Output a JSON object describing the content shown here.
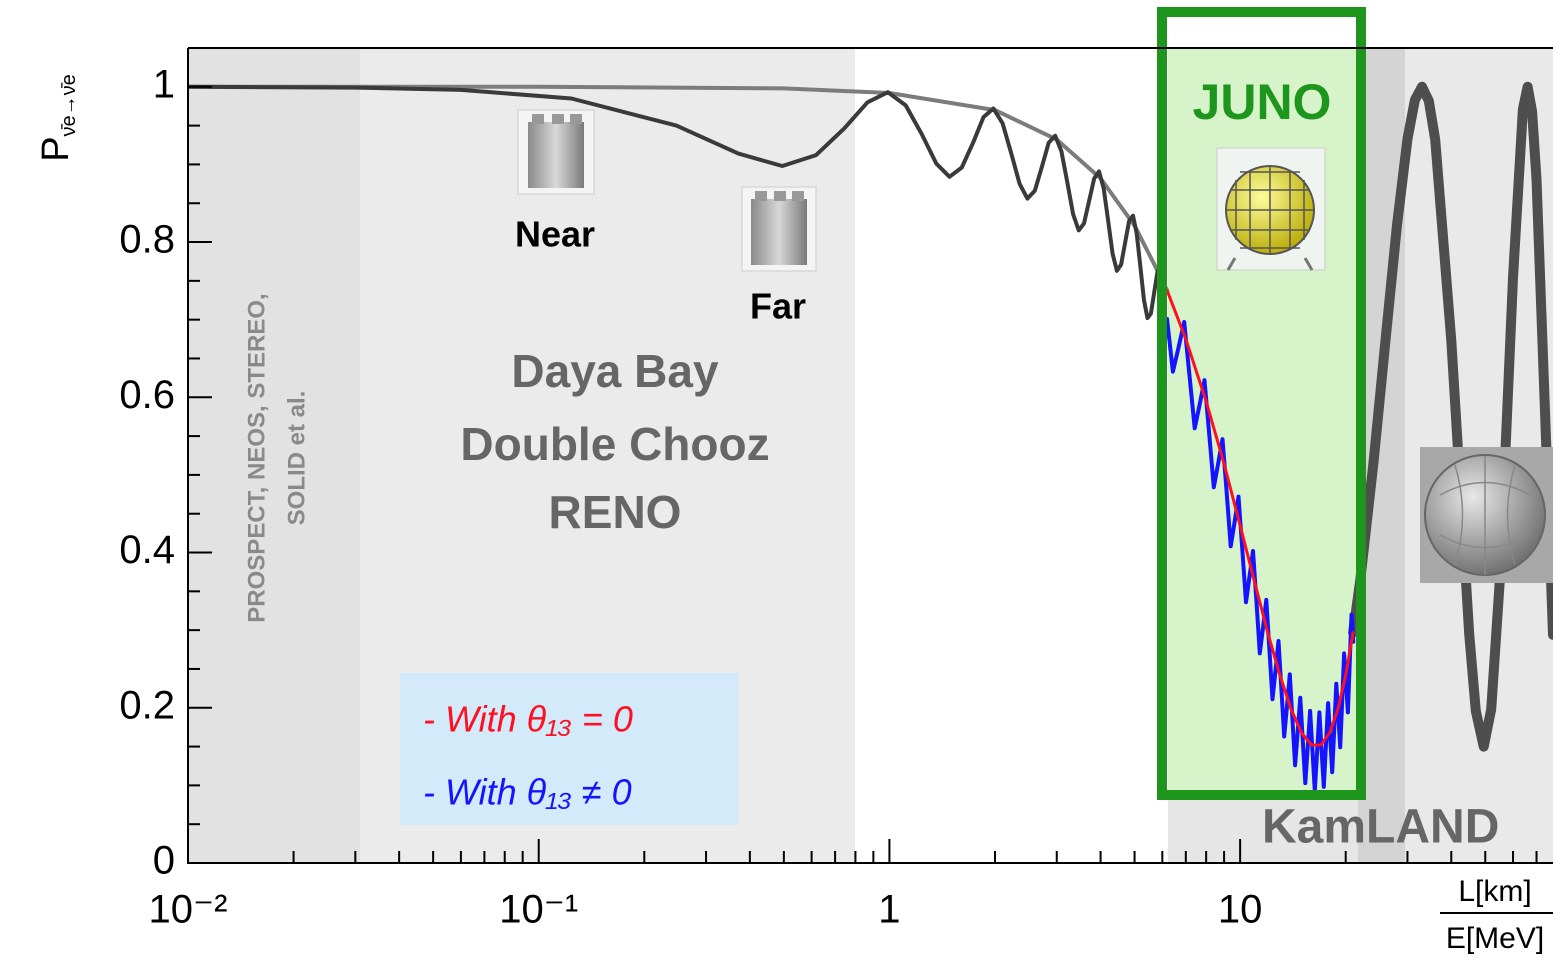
{
  "chart_data": {
    "type": "line",
    "xlog": true,
    "xlim": [
      0.01,
      78
    ],
    "ylim": [
      0,
      1.05
    ],
    "xticks": [
      {
        "value": 0.01,
        "label": "10⁻²"
      },
      {
        "value": 0.1,
        "label": "10⁻¹"
      },
      1,
      10
    ],
    "xminorticks": [
      0.02,
      0.03,
      0.04,
      0.05,
      0.06,
      0.07,
      0.08,
      0.09,
      0.2,
      0.3,
      0.4,
      0.5,
      0.6,
      0.7,
      0.8,
      0.9,
      2,
      3,
      4,
      5,
      6,
      7,
      8,
      9,
      20,
      30,
      40,
      50,
      60,
      70
    ],
    "yticks": [
      0,
      0.2,
      0.4,
      0.6,
      0.8,
      1
    ],
    "yminorticks": [
      0.05,
      0.1,
      0.15,
      0.25,
      0.3,
      0.35,
      0.45,
      0.5,
      0.55,
      0.65,
      0.7,
      0.75,
      0.85,
      0.9,
      0.95
    ],
    "y_label": "P",
    "y_label_sub": "ν̄e→ν̄e",
    "x_label_top": "L[km]",
    "x_label_bottom": "E[MeV]",
    "annotations": {
      "short_baseline": [
        "PROSPECT, NEOS, STEREO,",
        "SOLID et al."
      ],
      "medium_baseline": [
        "Daya Bay",
        "Double Chooz",
        "RENO"
      ],
      "near": "Near",
      "far": "Far",
      "juno": "JUNO",
      "kamland": "KamLAND"
    },
    "series": [
      {
        "color": "#7c7c7c",
        "line_width": 4,
        "x": [
          0.01,
          0.1,
          0.5,
          1,
          2,
          3,
          4,
          5,
          6,
          6.2
        ],
        "values": [
          1,
          1,
          0.998,
          0.992,
          0.97,
          0.932,
          0.882,
          0.821,
          0.751,
          0.737
        ]
      },
      {
        "color": "#3a3a3a",
        "line_width": 4,
        "x": [
          0.01,
          0.03,
          0.06,
          0.124,
          0.247,
          0.371,
          0.495,
          0.618,
          0.742,
          0.866,
          0.99,
          1.113,
          1.237,
          1.361,
          1.484,
          1.608,
          1.732,
          1.855,
          1.979,
          2.103,
          2.226,
          2.35,
          2.474,
          2.598,
          2.721,
          2.845,
          2.969,
          3.092,
          3.216,
          3.34,
          3.464,
          3.587,
          3.711,
          3.835,
          3.958,
          4.082,
          4.206,
          4.329,
          4.453,
          4.577,
          4.7,
          4.824,
          4.948,
          5.071,
          5.195,
          5.319,
          5.442,
          5.566,
          5.69,
          5.814,
          5.937,
          6.061
        ],
        "values": [
          1,
          0.999,
          0.996,
          0.985,
          0.95,
          0.914,
          0.898,
          0.912,
          0.946,
          0.98,
          0.993,
          0.976,
          0.939,
          0.901,
          0.884,
          0.896,
          0.928,
          0.961,
          0.972,
          0.953,
          0.914,
          0.875,
          0.856,
          0.866,
          0.897,
          0.928,
          0.937,
          0.917,
          0.877,
          0.836,
          0.815,
          0.824,
          0.853,
          0.882,
          0.891,
          0.869,
          0.827,
          0.785,
          0.763,
          0.771,
          0.799,
          0.827,
          0.834,
          0.811,
          0.768,
          0.725,
          0.702,
          0.708,
          0.735,
          0.762,
          0.768,
          0.745
        ]
      },
      {
        "name": "- With θ₁₃ ≠ 0",
        "color": "#1414ff",
        "line_width": 4,
        "x": [
          6.185,
          6.432,
          6.679,
          6.927,
          7.174,
          7.421,
          7.669,
          7.916,
          8.164,
          8.411,
          8.658,
          8.906,
          9.153,
          9.4,
          9.648,
          9.895,
          10.143,
          10.39,
          10.637,
          10.885,
          11.132,
          11.379,
          11.627,
          11.874,
          12.122,
          12.369,
          12.616,
          12.864,
          13.111,
          13.359,
          13.606,
          13.853,
          14.101,
          14.348,
          14.595,
          14.843,
          15.09,
          15.338,
          15.585,
          15.832,
          16.08,
          16.327,
          16.574,
          16.822,
          17.069,
          17.317,
          17.564,
          17.811,
          18.059,
          18.306,
          18.554,
          18.801,
          19.048,
          19.296,
          19.543,
          19.79,
          20.038,
          20.285,
          20.532,
          20.78,
          21.027
        ],
        "values": [
          0.701,
          0.633,
          0.665,
          0.697,
          0.628,
          0.56,
          0.591,
          0.622,
          0.553,
          0.484,
          0.515,
          0.546,
          0.477,
          0.408,
          0.44,
          0.472,
          0.404,
          0.336,
          0.369,
          0.402,
          0.336,
          0.27,
          0.304,
          0.339,
          0.275,
          0.211,
          0.248,
          0.286,
          0.224,
          0.163,
          0.202,
          0.243,
          0.184,
          0.126,
          0.169,
          0.213,
          0.157,
          0.103,
          0.149,
          0.196,
          0.144,
          0.093,
          0.143,
          0.194,
          0.145,
          0.098,
          0.151,
          0.206,
          0.161,
          0.117,
          0.174,
          0.231,
          0.19,
          0.149,
          0.209,
          0.27,
          0.232,
          0.194,
          0.257,
          0.32,
          0.285
        ]
      },
      {
        "name": "- With θ₁₃ = 0",
        "color": "#ff1020",
        "line_width": 3,
        "x": [
          6.2,
          7,
          8,
          9,
          10,
          11,
          12,
          13,
          14,
          15,
          16,
          17,
          18,
          19,
          20,
          21
        ],
        "values": [
          0.737,
          0.675,
          0.595,
          0.514,
          0.435,
          0.362,
          0.296,
          0.241,
          0.197,
          0.167,
          0.152,
          0.152,
          0.168,
          0.198,
          0.242,
          0.297
        ]
      },
      {
        "color": "#4e4e4e",
        "line_width": 10,
        "x": [
          21,
          22,
          24,
          26,
          28,
          30,
          31.5,
          33,
          34.5,
          36,
          40,
          45,
          47,
          49.5,
          52,
          55,
          60,
          64,
          66,
          68,
          70,
          75,
          78
        ],
        "values": [
          0.297,
          0.364,
          0.516,
          0.676,
          0.822,
          0.933,
          0.983,
          1,
          0.982,
          0.932,
          0.673,
          0.295,
          0.196,
          0.15,
          0.198,
          0.364,
          0.754,
          0.971,
          1,
          0.968,
          0.881,
          0.511,
          0.294
        ]
      }
    ]
  }
}
